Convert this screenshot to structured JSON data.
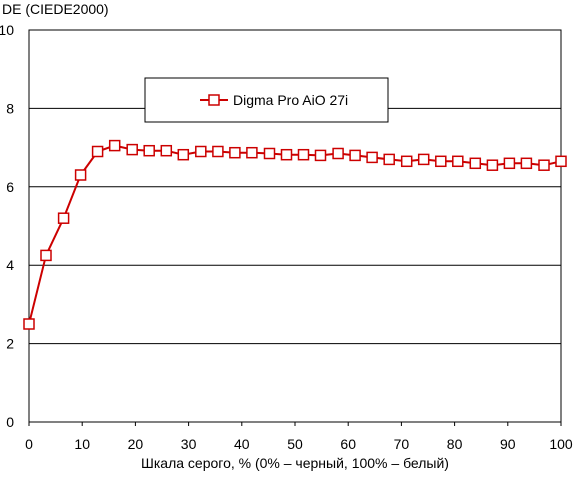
{
  "chart_data": {
    "type": "line",
    "title": "",
    "ylabel": "DE (CIEDE2000)",
    "xlabel": "Шкала серого, % (0% – черный, 100% – белый)",
    "xlim": [
      0,
      100
    ],
    "ylim": [
      0,
      10
    ],
    "xticks": [
      0,
      10,
      20,
      30,
      40,
      50,
      60,
      70,
      80,
      90,
      100
    ],
    "yticks": [
      0,
      2,
      4,
      6,
      8,
      10
    ],
    "grid": "horizontal",
    "legend_position": "top-center",
    "series": [
      {
        "name": "Digma Pro AiO 27i",
        "color": "#cc0000",
        "marker": "square-open",
        "x": [
          0,
          3.2,
          6.5,
          9.7,
          12.9,
          16.1,
          19.4,
          22.6,
          25.8,
          29.0,
          32.3,
          35.5,
          38.7,
          41.9,
          45.2,
          48.4,
          51.6,
          54.8,
          58.1,
          61.3,
          64.5,
          67.7,
          71.0,
          74.2,
          77.4,
          80.6,
          83.9,
          87.1,
          90.3,
          93.5,
          96.8,
          100
        ],
        "y": [
          2.5,
          4.25,
          5.2,
          6.3,
          6.9,
          7.05,
          6.95,
          6.92,
          6.92,
          6.82,
          6.9,
          6.9,
          6.87,
          6.87,
          6.85,
          6.82,
          6.82,
          6.8,
          6.85,
          6.8,
          6.75,
          6.7,
          6.65,
          6.7,
          6.65,
          6.65,
          6.6,
          6.55,
          6.6,
          6.6,
          6.55,
          6.65
        ]
      }
    ]
  }
}
